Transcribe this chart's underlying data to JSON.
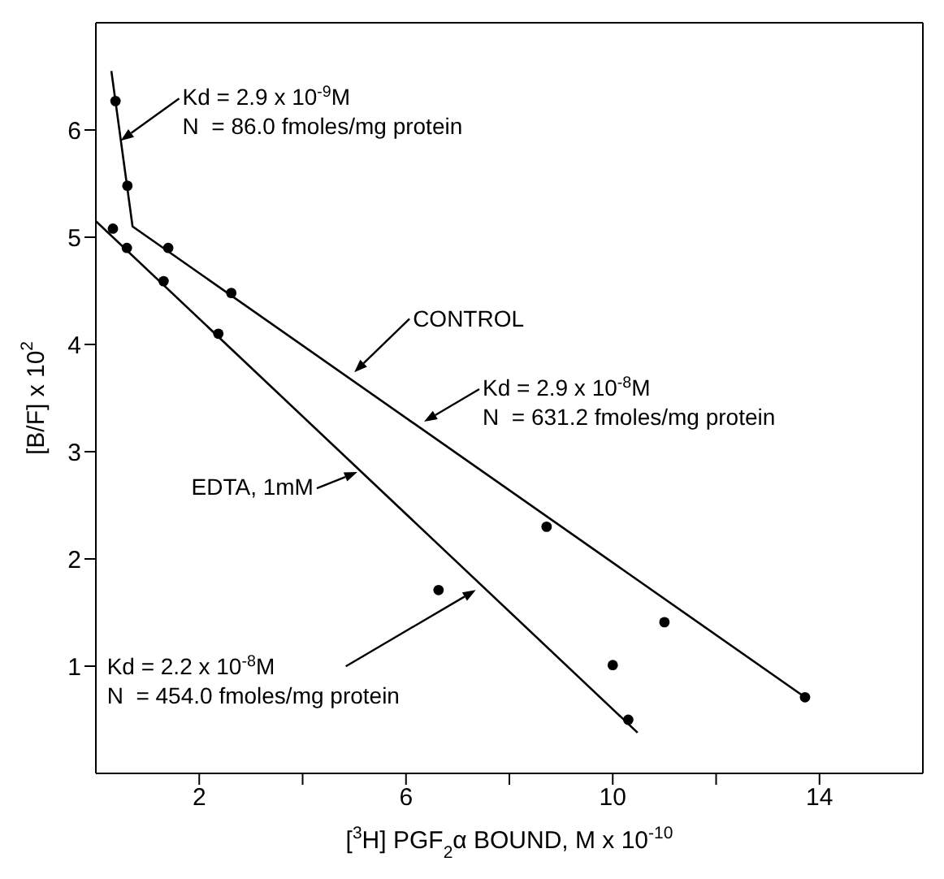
{
  "chart_data": {
    "type": "scatter",
    "xlabel": "[$^{3}$H] PGF$_{2}$α BOUND, M x 10$^{-10}$",
    "ylabel": "[B/F] x 10$^{2}$",
    "xlim": [
      0,
      16
    ],
    "ylim": [
      0,
      7
    ],
    "xticks": [
      2,
      {
        "value": 4,
        "label": null
      },
      6,
      {
        "value": 8,
        "label": null
      },
      10,
      {
        "value": 12,
        "label": null
      },
      14
    ],
    "yticks": [
      1,
      2,
      3,
      4,
      5,
      6
    ],
    "series": [
      {
        "color": "#000000",
        "marker": "circle",
        "x": [
          0.38,
          0.61,
          1.4,
          2.62,
          8.72,
          11.0,
          13.72
        ],
        "values": [
          6.27,
          5.48,
          4.9,
          4.48,
          2.3,
          1.41,
          0.71
        ]
      },
      {
        "color": "#000000",
        "marker": "circle",
        "x": [
          0.33,
          0.6,
          1.31,
          2.37,
          6.63,
          10.0,
          10.3
        ],
        "values": [
          5.08,
          4.9,
          4.59,
          4.1,
          1.71,
          1.01,
          0.5
        ]
      },
      {
        "type": "line",
        "color": "#000000",
        "marker": "none",
        "x": [
          0.3,
          0.71,
          13.72
        ],
        "values": [
          6.55,
          5.1,
          0.71
        ]
      },
      {
        "type": "line",
        "color": "#000000",
        "marker": "none",
        "x": [
          0,
          10.48
        ],
        "values": [
          5.15,
          0.38
        ]
      }
    ],
    "annotations": [
      {
        "text": "Kd = 2.9 x 10$^{-9}$M\nN  = 86.0 fmoles/mg protein",
        "x": 0.48,
        "y": 5.9
      },
      {
        "text": "CONTROL",
        "x": 5.0,
        "y": 3.74
      },
      {
        "text": "Kd = 2.9 x 10$^{-8}$M\nN  = 631.2 fmoles/mg protein",
        "x": 6.35,
        "y": 3.28
      },
      {
        "text": "EDTA, 1mM",
        "x": 5.06,
        "y": 2.81
      },
      {
        "text": "Kd = 2.2 x 10$^{-8}$M\nN  = 454.0 fmoles/mg protein",
        "x": 7.35,
        "y": 1.71
      }
    ]
  }
}
